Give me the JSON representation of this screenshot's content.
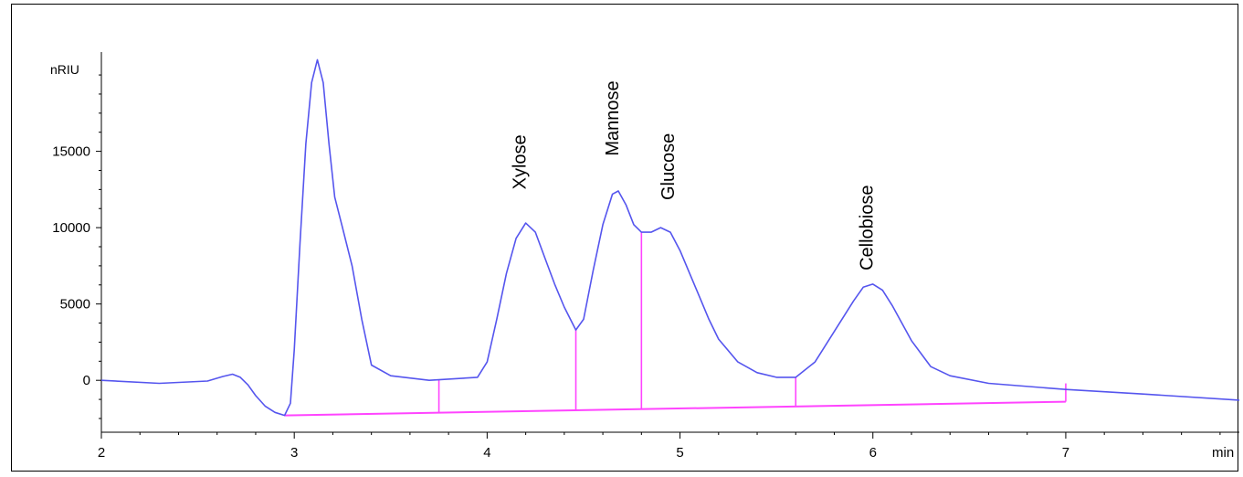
{
  "chart_data": {
    "type": "line",
    "title": "",
    "ylabel": "nRIU",
    "xlabel": "min",
    "xlim": [
      2,
      7.9
    ],
    "ylim": [
      -3400,
      21500
    ],
    "x_ticks": [
      2,
      3,
      4,
      5,
      6,
      7
    ],
    "y_ticks": [
      0,
      5000,
      10000,
      15000
    ],
    "grid": false,
    "colors": {
      "signal": "#5555ee",
      "baseline": "#ff44ff"
    },
    "series": [
      {
        "name": "",
        "role": "signal",
        "points": [
          [
            2.0,
            0
          ],
          [
            2.3,
            -200
          ],
          [
            2.55,
            -50
          ],
          [
            2.63,
            250
          ],
          [
            2.68,
            400
          ],
          [
            2.72,
            200
          ],
          [
            2.76,
            -300
          ],
          [
            2.8,
            -1000
          ],
          [
            2.85,
            -1700
          ],
          [
            2.9,
            -2100
          ],
          [
            2.95,
            -2300
          ],
          [
            2.98,
            -1500
          ],
          [
            3.0,
            2000
          ],
          [
            3.03,
            9000
          ],
          [
            3.06,
            15500
          ],
          [
            3.09,
            19500
          ],
          [
            3.12,
            21000
          ],
          [
            3.15,
            19500
          ],
          [
            3.18,
            15500
          ],
          [
            3.21,
            12000
          ],
          [
            3.25,
            10000
          ],
          [
            3.3,
            7500
          ],
          [
            3.35,
            4000
          ],
          [
            3.4,
            1000
          ],
          [
            3.5,
            300
          ],
          [
            3.7,
            0
          ],
          [
            3.95,
            200
          ],
          [
            4.0,
            1200
          ],
          [
            4.05,
            4000
          ],
          [
            4.1,
            7000
          ],
          [
            4.15,
            9300
          ],
          [
            4.2,
            10300
          ],
          [
            4.25,
            9700
          ],
          [
            4.3,
            8000
          ],
          [
            4.35,
            6300
          ],
          [
            4.4,
            4800
          ],
          [
            4.46,
            3300
          ],
          [
            4.5,
            4000
          ],
          [
            4.55,
            7200
          ],
          [
            4.6,
            10200
          ],
          [
            4.65,
            12200
          ],
          [
            4.68,
            12400
          ],
          [
            4.72,
            11500
          ],
          [
            4.76,
            10200
          ],
          [
            4.8,
            9700
          ],
          [
            4.85,
            9700
          ],
          [
            4.9,
            10000
          ],
          [
            4.95,
            9700
          ],
          [
            5.0,
            8500
          ],
          [
            5.05,
            7000
          ],
          [
            5.1,
            5500
          ],
          [
            5.15,
            4000
          ],
          [
            5.2,
            2700
          ],
          [
            5.3,
            1200
          ],
          [
            5.4,
            500
          ],
          [
            5.5,
            200
          ],
          [
            5.6,
            200
          ],
          [
            5.7,
            1200
          ],
          [
            5.8,
            3200
          ],
          [
            5.9,
            5200
          ],
          [
            5.95,
            6100
          ],
          [
            6.0,
            6300
          ],
          [
            6.05,
            5900
          ],
          [
            6.1,
            4900
          ],
          [
            6.2,
            2600
          ],
          [
            6.3,
            900
          ],
          [
            6.4,
            300
          ],
          [
            6.6,
            -200
          ],
          [
            7.0,
            -600
          ],
          [
            7.4,
            -900
          ],
          [
            7.9,
            -1300
          ]
        ]
      },
      {
        "name": "",
        "role": "baseline",
        "points": [
          [
            2.95,
            -2300
          ],
          [
            7.0,
            -1400
          ]
        ]
      }
    ],
    "peak_markers": [
      3.75,
      4.46,
      4.8,
      5.6,
      7.0
    ],
    "peak_labels": [
      {
        "text": "Xylose",
        "x": 4.2,
        "y": 12500
      },
      {
        "text": "Mannose",
        "x": 4.68,
        "y": 14700
      },
      {
        "text": "Glucose",
        "x": 4.97,
        "y": 11800
      },
      {
        "text": "Cellobiose",
        "x": 6.0,
        "y": 7200
      }
    ]
  }
}
